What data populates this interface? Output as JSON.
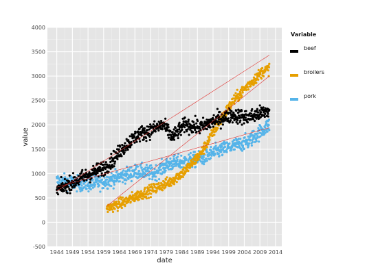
{
  "chart_data": {
    "type": "scatter",
    "xlabel": "date",
    "ylabel": "value",
    "xlim": [
      1941,
      2016
    ],
    "ylim": [
      -500,
      4000
    ],
    "x_ticks": [
      1944,
      1949,
      1954,
      1959,
      1964,
      1969,
      1974,
      1979,
      1984,
      1989,
      1994,
      1999,
      2004,
      2009,
      2014
    ],
    "y_ticks": [
      -500,
      0,
      500,
      1000,
      1500,
      2000,
      2500,
      3000,
      3500,
      4000
    ],
    "grid": true,
    "legend": {
      "title": "Variable",
      "position": "right"
    },
    "series": [
      {
        "name": "beef",
        "color": "#000000",
        "x_range": [
          1944,
          2012
        ],
        "trend": [
          [
            1944,
            660
          ],
          [
            1955,
            1000
          ],
          [
            1960,
            1150
          ],
          [
            1966,
            1580
          ],
          [
            1970,
            1800
          ],
          [
            1974,
            1880
          ],
          [
            1978,
            2000
          ],
          [
            1981,
            1750
          ],
          [
            1985,
            2000
          ],
          [
            1990,
            1950
          ],
          [
            1995,
            2100
          ],
          [
            2000,
            2200
          ],
          [
            2005,
            2150
          ],
          [
            2010,
            2250
          ],
          [
            2012,
            2300
          ]
        ],
        "noise": 110,
        "fit": {
          "x": [
            1944,
            2012
          ],
          "y": [
            640,
            3430
          ]
        }
      },
      {
        "name": "broilers",
        "color": "#E69F00",
        "x_range": [
          1960,
          2012
        ],
        "trend": [
          [
            1960,
            280
          ],
          [
            1965,
            400
          ],
          [
            1970,
            550
          ],
          [
            1975,
            680
          ],
          [
            1980,
            820
          ],
          [
            1985,
            1050
          ],
          [
            1990,
            1400
          ],
          [
            1995,
            1950
          ],
          [
            2000,
            2450
          ],
          [
            2005,
            2800
          ],
          [
            2010,
            3100
          ],
          [
            2012,
            3150
          ]
        ],
        "noise": 80,
        "fit": {
          "x": [
            1960,
            2012
          ],
          "y": [
            330,
            3000
          ]
        }
      },
      {
        "name": "pork",
        "color": "#56B4E9",
        "x_range": [
          1944,
          2012
        ],
        "trend": [
          [
            1944,
            850
          ],
          [
            1950,
            800
          ],
          [
            1955,
            780
          ],
          [
            1960,
            850
          ],
          [
            1965,
            950
          ],
          [
            1970,
            1050
          ],
          [
            1975,
            1000
          ],
          [
            1980,
            1200
          ],
          [
            1985,
            1250
          ],
          [
            1990,
            1300
          ],
          [
            1995,
            1450
          ],
          [
            2000,
            1550
          ],
          [
            2005,
            1650
          ],
          [
            2010,
            1900
          ],
          [
            2012,
            2000
          ]
        ],
        "noise": 110,
        "fit": {
          "x": [
            1944,
            2012
          ],
          "y": [
            720,
            1940
          ]
        }
      }
    ],
    "fit_line_color": "#e0302d"
  }
}
